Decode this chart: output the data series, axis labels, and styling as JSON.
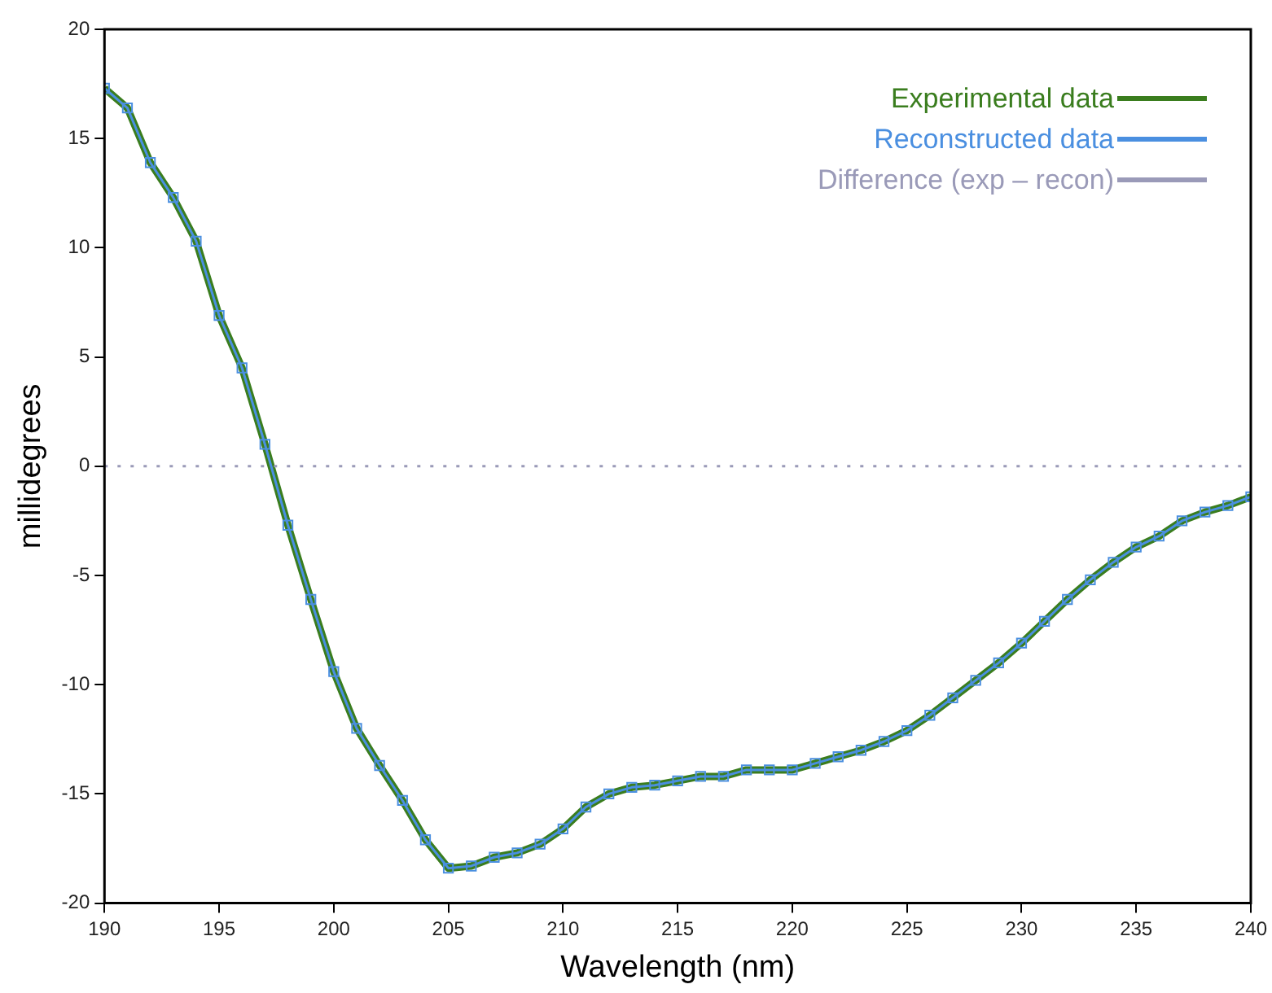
{
  "chart_data": {
    "type": "line",
    "xlabel": "Wavelength (nm)",
    "ylabel": "millidegrees",
    "x": [
      190,
      191,
      192,
      193,
      194,
      195,
      196,
      197,
      198,
      199,
      200,
      201,
      202,
      203,
      204,
      205,
      206,
      207,
      208,
      209,
      210,
      211,
      212,
      213,
      214,
      215,
      216,
      217,
      218,
      219,
      220,
      221,
      222,
      223,
      224,
      225,
      226,
      227,
      228,
      229,
      230,
      231,
      232,
      233,
      234,
      235,
      236,
      237,
      238,
      239,
      240
    ],
    "series": [
      {
        "name": "Experimental data",
        "color": "#3a7d1e",
        "marker": "none",
        "values": [
          17.3,
          16.4,
          13.9,
          12.3,
          10.3,
          6.9,
          4.5,
          1.0,
          -2.7,
          -6.1,
          -9.4,
          -12.0,
          -13.7,
          -15.3,
          -17.1,
          -18.4,
          -18.3,
          -17.9,
          -17.7,
          -17.3,
          -16.6,
          -15.6,
          -15.0,
          -14.7,
          -14.6,
          -14.4,
          -14.2,
          -14.2,
          -13.9,
          -13.9,
          -13.9,
          -13.6,
          -13.3,
          -13.0,
          -12.6,
          -12.1,
          -11.4,
          -10.6,
          -9.8,
          -9.0,
          -8.1,
          -7.1,
          -6.1,
          -5.2,
          -4.4,
          -3.7,
          -3.2,
          -2.5,
          -2.1,
          -1.8,
          -1.4
        ]
      },
      {
        "name": "Reconstructed data",
        "color": "#4a8fe0",
        "marker": "square",
        "values": [
          17.3,
          16.4,
          13.9,
          12.3,
          10.3,
          6.9,
          4.5,
          1.0,
          -2.7,
          -6.1,
          -9.4,
          -12.0,
          -13.7,
          -15.3,
          -17.1,
          -18.4,
          -18.3,
          -17.9,
          -17.7,
          -17.3,
          -16.6,
          -15.6,
          -15.0,
          -14.7,
          -14.6,
          -14.4,
          -14.2,
          -14.2,
          -13.9,
          -13.9,
          -13.9,
          -13.6,
          -13.3,
          -13.0,
          -12.6,
          -12.1,
          -11.4,
          -10.6,
          -9.8,
          -9.0,
          -8.1,
          -7.1,
          -6.1,
          -5.2,
          -4.4,
          -3.7,
          -3.2,
          -2.5,
          -2.1,
          -1.8,
          -1.4
        ]
      },
      {
        "name": "Difference (exp – recon)",
        "color": "#9a9ab8",
        "marker": "none",
        "line_style": "dotted",
        "values": [
          0,
          0,
          0,
          0,
          0,
          0,
          0,
          0,
          0,
          0,
          0,
          0,
          0,
          0,
          0,
          0,
          0,
          0,
          0,
          0,
          0,
          0,
          0,
          0,
          0,
          0,
          0,
          0,
          0,
          0,
          0,
          0,
          0,
          0,
          0,
          0,
          0,
          0,
          0,
          0,
          0,
          0,
          0,
          0,
          0,
          0,
          0,
          0,
          0,
          0,
          0
        ]
      }
    ],
    "xlim": [
      190,
      240
    ],
    "xticks": [
      190,
      195,
      200,
      205,
      210,
      215,
      220,
      225,
      230,
      235,
      240
    ],
    "ylim": [
      -20,
      20
    ],
    "yticks": [
      -20,
      -15,
      -10,
      -5,
      0,
      5,
      10,
      15,
      20
    ],
    "legend": "top right"
  }
}
